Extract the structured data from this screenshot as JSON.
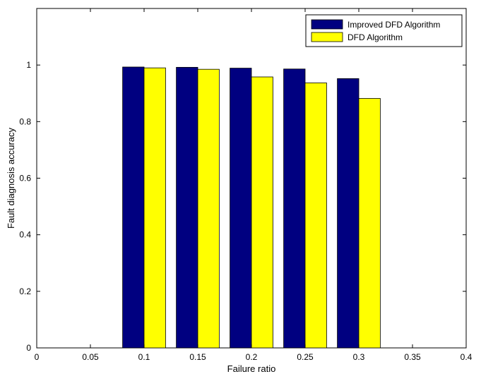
{
  "chart_data": {
    "type": "bar",
    "title": "",
    "xlabel": "Failure ratio",
    "ylabel": "Fault diagnosis accuracy",
    "xlim": [
      0,
      0.4
    ],
    "ylim": [
      0,
      1.2
    ],
    "x": [
      0.1,
      0.15,
      0.2,
      0.25,
      0.3
    ],
    "x_ticks": [
      "0",
      "0.05",
      "0.1",
      "0.15",
      "0.2",
      "0.25",
      "0.3",
      "0.35",
      "0.4"
    ],
    "y_ticks": [
      "0",
      "0.2",
      "0.4",
      "0.6",
      "0.8",
      "1"
    ],
    "grid": false,
    "legend_position": "top-right",
    "series": [
      {
        "name": "Improved DFD Algorithm",
        "color": "#000080",
        "values": [
          0.993,
          0.992,
          0.989,
          0.986,
          0.952
        ]
      },
      {
        "name": "DFD Algorithm",
        "color": "#ffff00",
        "values": [
          0.99,
          0.985,
          0.958,
          0.937,
          0.882
        ]
      }
    ]
  }
}
